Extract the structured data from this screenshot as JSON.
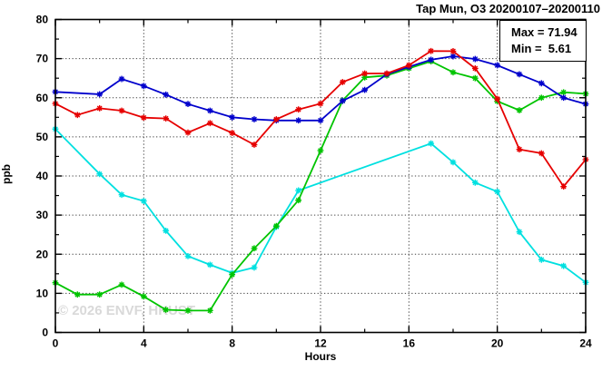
{
  "window": {
    "title": "Tap Mun, O3 20200107–20200110"
  },
  "watermark": {
    "text": "© 2026 ENVF, HKUST"
  },
  "stats_box": {
    "max_label": "Max = 71.94",
    "min_label": "Min =  5.61"
  },
  "chart_data": {
    "type": "line",
    "title": "Tap Mun, O3 20200107–20200110",
    "xlabel": "Hours",
    "ylabel": "ppb",
    "xlim": [
      0,
      24
    ],
    "ylim": [
      0,
      80
    ],
    "x_major_ticks": [
      0,
      4,
      8,
      12,
      16,
      20,
      24
    ],
    "x_tick_labels": [
      "0",
      "4",
      "8",
      "12",
      "16",
      "20",
      "24"
    ],
    "x_minor_step": 2,
    "y_major_ticks": [
      0,
      10,
      20,
      30,
      40,
      50,
      60,
      70,
      80
    ],
    "y_tick_labels": [
      "0",
      "10",
      "20",
      "30",
      "40",
      "50",
      "60",
      "70",
      "80"
    ],
    "y_minor_step": 5,
    "grid": {
      "style": "dotted",
      "on_x_majors": true,
      "on_y_majors": true
    },
    "legend_position": "none",
    "annotations": {
      "max": 71.94,
      "min": 5.61
    },
    "marker_style": "asterisk",
    "x": [
      0,
      1,
      2,
      3,
      4,
      5,
      6,
      7,
      8,
      9,
      10,
      11,
      12,
      13,
      14,
      15,
      16,
      17,
      18,
      19,
      20,
      21,
      22,
      23,
      24
    ],
    "series": [
      {
        "name": "cyan-line",
        "color": "#00e0e0",
        "values": [
          52.0,
          null,
          40.5,
          35.2,
          33.6,
          26.0,
          19.5,
          17.3,
          15.2,
          16.6,
          27.0,
          36.3,
          null,
          null,
          null,
          null,
          null,
          48.3,
          43.5,
          38.3,
          36.0,
          25.7,
          18.6,
          17.0,
          12.8
        ]
      },
      {
        "name": "green-line",
        "color": "#00c400",
        "values": [
          12.7,
          9.7,
          9.7,
          12.2,
          9.2,
          5.8,
          5.6,
          5.6,
          14.8,
          21.5,
          27.2,
          33.8,
          46.5,
          59.3,
          65.2,
          65.7,
          67.5,
          69.3,
          66.5,
          65.0,
          59.1,
          56.8,
          60.0,
          61.4,
          61.0
        ]
      },
      {
        "name": "blue-line",
        "color": "#0000cc",
        "values": [
          61.5,
          null,
          60.9,
          64.8,
          63.0,
          60.8,
          58.4,
          56.7,
          55.0,
          54.5,
          54.2,
          54.2,
          54.2,
          59.2,
          62.0,
          66.0,
          67.9,
          69.7,
          70.6,
          69.9,
          68.3,
          66.0,
          63.7,
          60.0,
          58.4
        ]
      },
      {
        "name": "red-line",
        "color": "#e60000",
        "values": [
          58.5,
          55.6,
          57.3,
          56.7,
          54.9,
          54.7,
          51.1,
          53.5,
          51.0,
          48.0,
          54.5,
          57.0,
          58.5,
          64.0,
          66.2,
          66.2,
          68.3,
          71.94,
          71.9,
          67.5,
          59.7,
          46.8,
          45.8,
          37.3,
          44.2
        ]
      }
    ]
  }
}
